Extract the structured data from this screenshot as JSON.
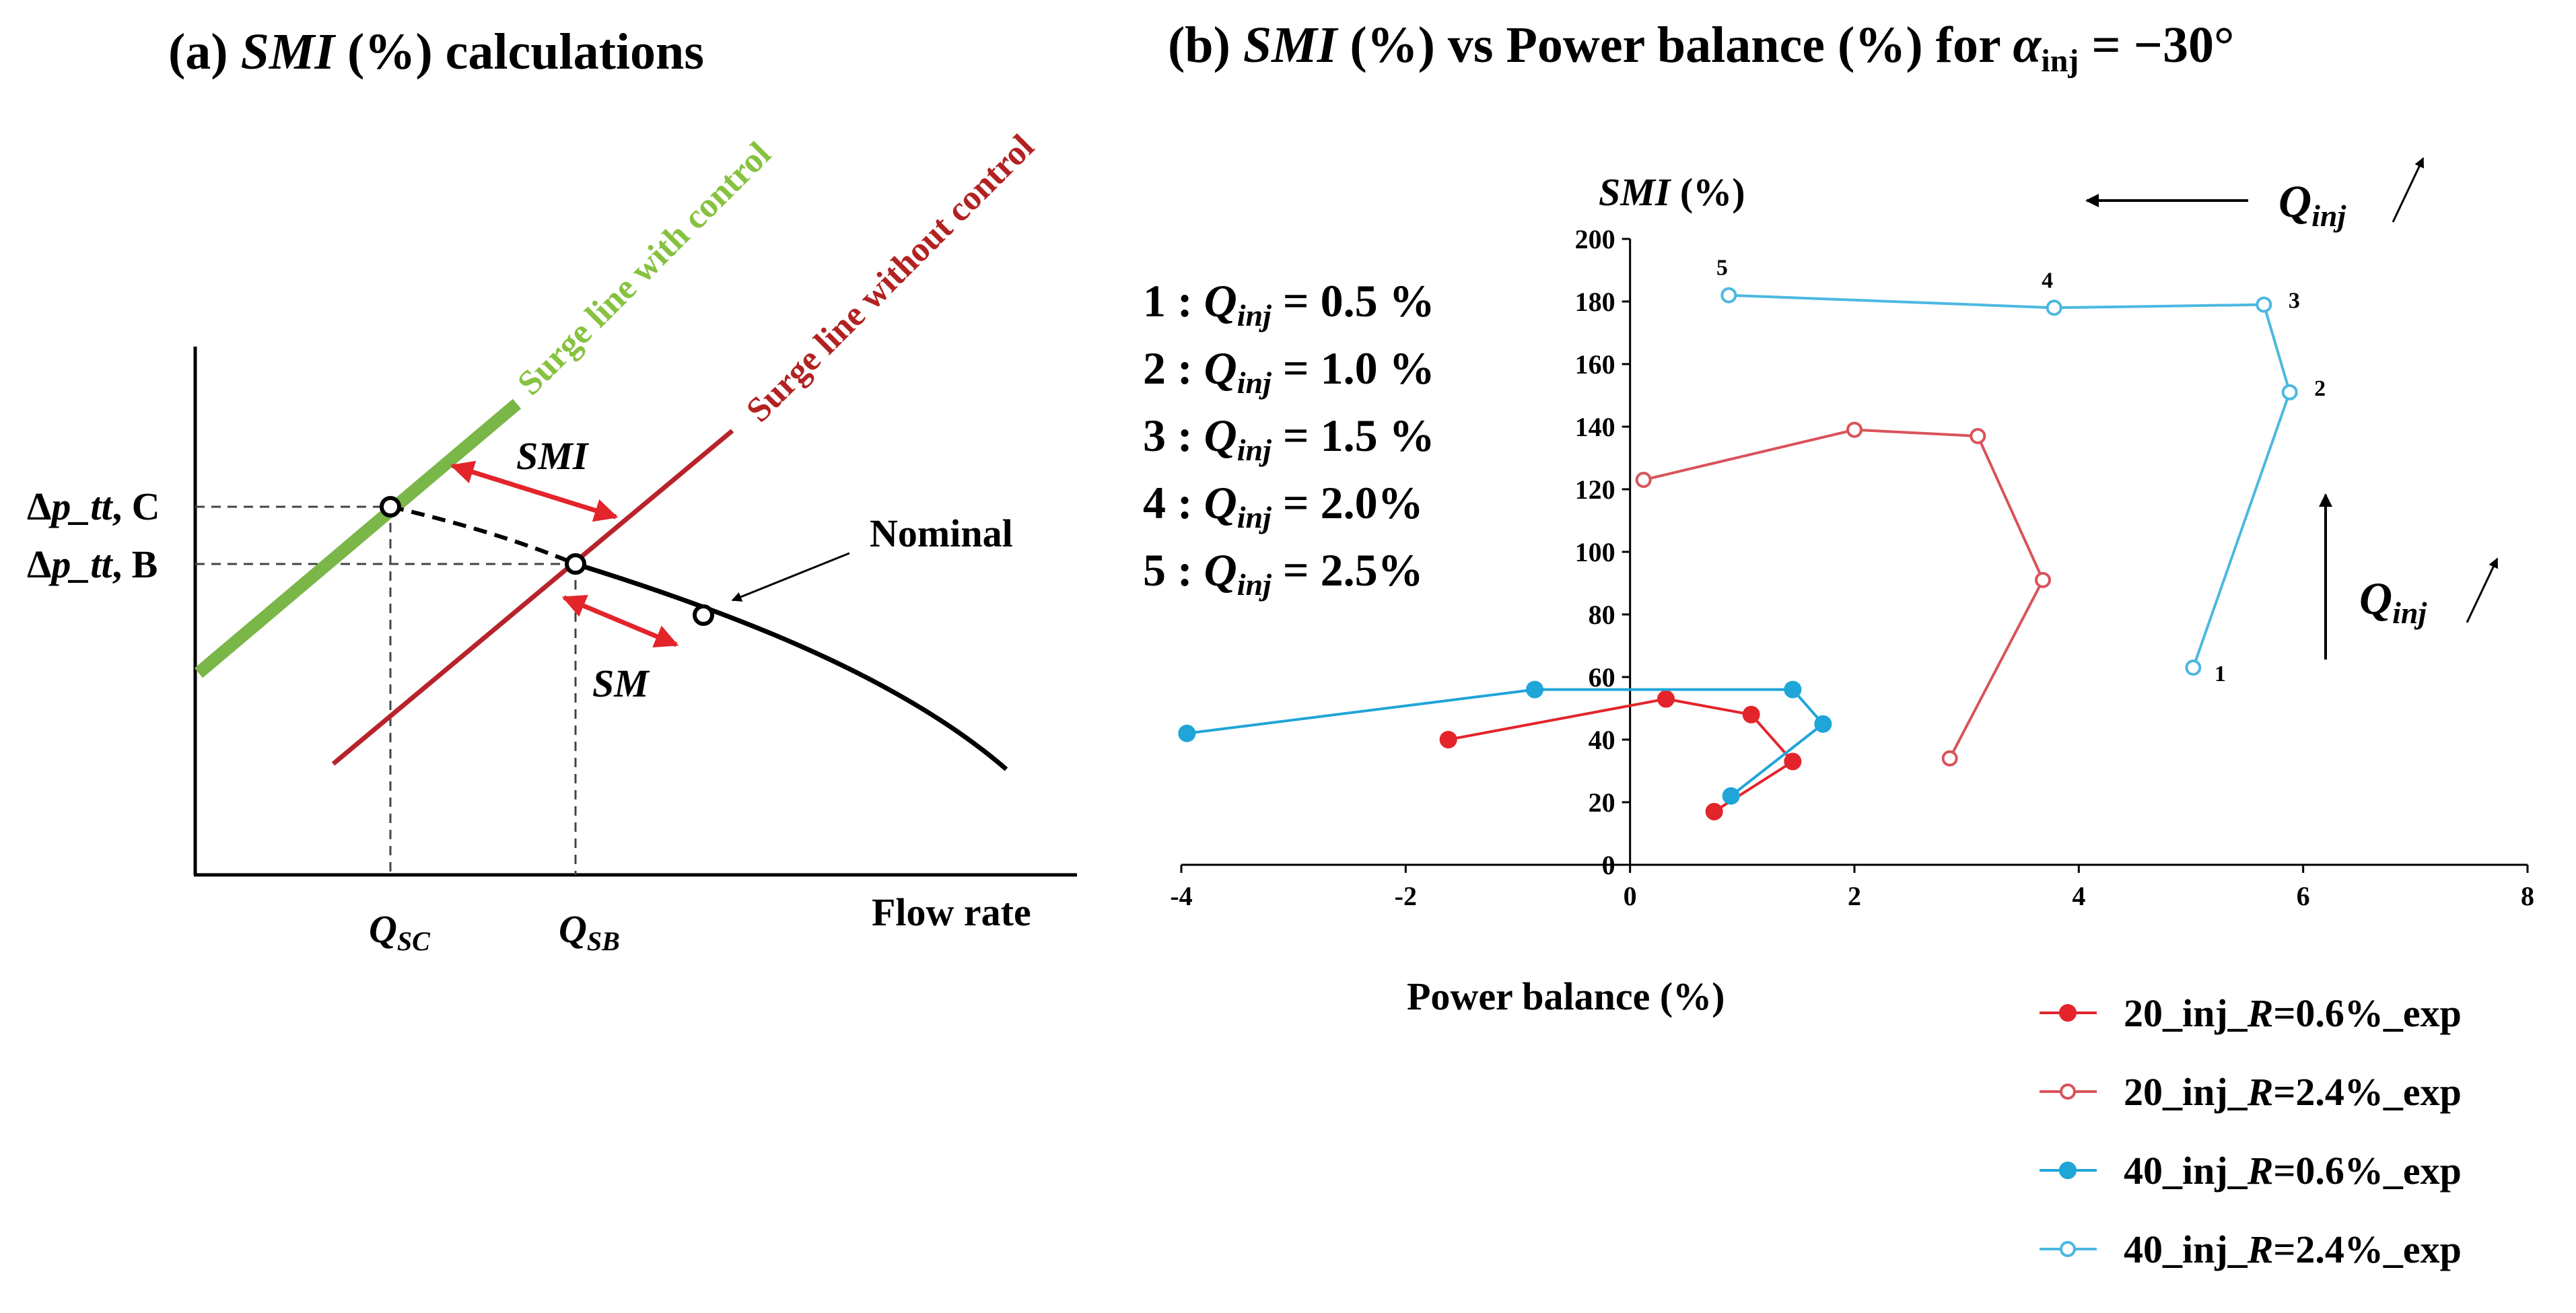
{
  "colors": {
    "green_line": "#7ab648",
    "red_line": "#b8232b",
    "red_series": "#e3242b",
    "open_red_series": "#d9535a",
    "blue_series": "#1fa5d8",
    "open_blue_series": "#4cb8e0",
    "arrow_red": "#e3242b"
  },
  "panel_a": {
    "title_pre": "(a) ",
    "title_it": "SMI",
    "title_post": " (%) calculations",
    "surge_with": "Surge line with control",
    "surge_without": "Surge line without control",
    "smi_label": "SMI",
    "sm_label": "SM",
    "nominal_label": "Nominal",
    "dp_c_pre": "Δ",
    "dp_c_it": "p_tt",
    "dp_c_post": ", C",
    "dp_b_pre": "Δ",
    "dp_b_it": "p_tt",
    "dp_b_post": ", B",
    "qsc_main": "Q",
    "qsc_sub": "SC",
    "qsb_main": "Q",
    "qsb_sub": "SB",
    "xlabel": "Flow rate"
  },
  "panel_b": {
    "title_pre": "(b) ",
    "title_it": "SMI",
    "title_mid": " (%) vs Power balance (%) for ",
    "title_alpha": "α",
    "title_sub": "inj",
    "title_post": " = −30°",
    "q_main": "Q",
    "q_sub": "inj",
    "categories": [
      {
        "num": "1",
        "value": "= 0.5 %"
      },
      {
        "num": "2",
        "value": "= 1.0 %"
      },
      {
        "num": "3",
        "value": "= 1.5 %"
      },
      {
        "num": "4",
        "value": "= 2.0%"
      },
      {
        "num": "5",
        "value": "= 2.5%"
      }
    ]
  },
  "chart_data": {
    "type": "line",
    "title": "SMI (%) vs Power balance (%) for α_inj = −30°",
    "xlabel": "Power balance (%)",
    "ylabel_it": "SMI",
    "ylabel_post": " (%)",
    "xlim": [
      -4,
      8
    ],
    "ylim": [
      0,
      200
    ],
    "xticks": [
      "-4",
      "-2",
      "0",
      "2",
      "4",
      "6",
      "8"
    ],
    "yticks": [
      "0",
      "20",
      "40",
      "60",
      "80",
      "100",
      "120",
      "140",
      "160",
      "180",
      "200"
    ],
    "series": [
      {
        "name_pre": "20_inj_",
        "name_it": "R",
        "name_post": "=0.6%_exp",
        "color": "#e3242b",
        "filled": true,
        "x": [
          0.75,
          1.45,
          1.08,
          0.32,
          -1.62
        ],
        "y": [
          17,
          33,
          48,
          53,
          40
        ]
      },
      {
        "name_pre": "20_inj_",
        "name_it": "R",
        "name_post": "=2.4%_exp",
        "color": "#d9535a",
        "filled": false,
        "x": [
          2.85,
          3.68,
          3.1,
          2.0,
          0.12
        ],
        "y": [
          34,
          91,
          137,
          139,
          123
        ]
      },
      {
        "name_pre": "40_inj_",
        "name_it": "R",
        "name_post": "=0.6%_exp",
        "color": "#1fa5d8",
        "filled": true,
        "x": [
          0.9,
          1.72,
          1.45,
          -0.85,
          -3.95
        ],
        "y": [
          22,
          45,
          56,
          56,
          42
        ]
      },
      {
        "name_pre": "40_inj_",
        "name_it": "R",
        "name_post": "=2.4%_exp",
        "color": "#4cb8e0",
        "filled": false,
        "x": [
          5.02,
          5.88,
          5.65,
          3.78,
          0.88
        ],
        "y": [
          63,
          151,
          179,
          178,
          182
        ]
      }
    ],
    "point_labels": [
      "1",
      "2",
      "3",
      "4",
      "5"
    ]
  }
}
